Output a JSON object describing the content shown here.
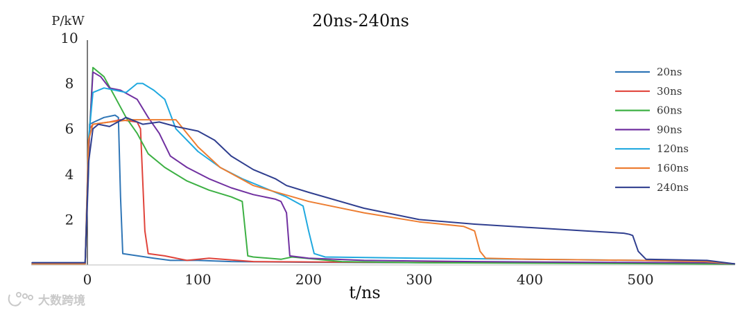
{
  "chart_data": {
    "type": "line",
    "title": "20ns-240ns",
    "xlabel": "t/ns",
    "ylabel": "P/kW",
    "xlim": [
      -50,
      585
    ],
    "ylim": [
      0,
      10
    ],
    "xticks": [
      0,
      100,
      200,
      300,
      400,
      500
    ],
    "yticks": [
      2,
      4,
      6,
      8,
      10
    ],
    "grid": false,
    "legend_position": "right",
    "series": [
      {
        "name": "20ns",
        "color": "#2e75b6",
        "x": [
          -50,
          -2,
          1,
          2,
          6,
          15,
          25,
          28,
          30,
          32,
          60,
          75,
          100,
          130,
          200,
          300,
          400,
          500,
          560,
          585
        ],
        "y": [
          0.1,
          0.1,
          4.0,
          6.2,
          6.3,
          6.5,
          6.6,
          6.5,
          3.0,
          0.5,
          0.3,
          0.2,
          0.2,
          0.15,
          0.12,
          0.1,
          0.1,
          0.08,
          0.08,
          0.05
        ]
      },
      {
        "name": "30ns",
        "color": "#e0433a",
        "x": [
          -50,
          -2,
          2,
          5,
          20,
          30,
          45,
          48,
          52,
          55,
          70,
          90,
          110,
          150,
          250,
          350,
          450,
          560,
          585
        ],
        "y": [
          0.05,
          0.05,
          6.0,
          6.2,
          6.3,
          6.4,
          6.3,
          6.0,
          1.5,
          0.5,
          0.4,
          0.2,
          0.3,
          0.15,
          0.12,
          0.1,
          0.08,
          0.06,
          0.05
        ]
      },
      {
        "name": "60ns",
        "color": "#3cb043",
        "x": [
          -50,
          -2,
          1,
          5,
          15,
          25,
          35,
          45,
          55,
          70,
          90,
          110,
          130,
          140,
          145,
          150,
          175,
          185,
          230,
          300,
          400,
          500,
          585
        ],
        "y": [
          0.05,
          0.05,
          5.0,
          8.7,
          8.3,
          7.4,
          6.5,
          5.8,
          4.9,
          4.3,
          3.7,
          3.3,
          3.0,
          2.8,
          0.4,
          0.35,
          0.25,
          0.35,
          0.15,
          0.1,
          0.08,
          0.06,
          0.04
        ]
      },
      {
        "name": "90ns",
        "color": "#7030a0",
        "x": [
          -50,
          -2,
          1,
          5,
          12,
          20,
          30,
          45,
          55,
          65,
          75,
          90,
          110,
          130,
          150,
          170,
          175,
          180,
          183,
          200,
          250,
          350,
          450,
          560,
          585
        ],
        "y": [
          0.05,
          0.05,
          5.0,
          8.5,
          8.3,
          7.8,
          7.7,
          7.3,
          6.5,
          5.8,
          4.8,
          4.3,
          3.8,
          3.4,
          3.1,
          2.9,
          2.8,
          2.3,
          0.4,
          0.3,
          0.2,
          0.15,
          0.12,
          0.1,
          0.05
        ]
      },
      {
        "name": "120ns",
        "color": "#1fa8df",
        "x": [
          -50,
          -2,
          1,
          5,
          15,
          25,
          35,
          45,
          50,
          60,
          70,
          80,
          100,
          120,
          140,
          160,
          180,
          195,
          200,
          205,
          215,
          300,
          400,
          500,
          560,
          585
        ],
        "y": [
          0.05,
          0.05,
          5.5,
          7.6,
          7.8,
          7.7,
          7.6,
          8.0,
          8.0,
          7.7,
          7.3,
          6.0,
          5.0,
          4.3,
          3.8,
          3.4,
          3.0,
          2.6,
          1.5,
          0.5,
          0.35,
          0.3,
          0.25,
          0.2,
          0.15,
          0.05
        ]
      },
      {
        "name": "160ns",
        "color": "#ed7d31",
        "x": [
          -50,
          -2,
          1,
          5,
          20,
          40,
          55,
          70,
          80,
          100,
          120,
          150,
          200,
          250,
          300,
          340,
          350,
          355,
          360,
          400,
          500,
          560,
          585
        ],
        "y": [
          0.05,
          0.05,
          5.5,
          6.2,
          6.3,
          6.4,
          6.4,
          6.4,
          6.4,
          5.2,
          4.3,
          3.5,
          2.8,
          2.3,
          1.9,
          1.7,
          1.5,
          0.6,
          0.3,
          0.25,
          0.2,
          0.15,
          0.05
        ]
      },
      {
        "name": "240ns",
        "color": "#2f3e8f",
        "x": [
          -50,
          -2,
          1,
          5,
          10,
          20,
          35,
          50,
          65,
          80,
          100,
          115,
          130,
          150,
          170,
          180,
          200,
          250,
          300,
          350,
          400,
          450,
          485,
          490,
          493,
          498,
          505,
          560,
          585
        ],
        "y": [
          0.1,
          0.1,
          4.5,
          6.0,
          6.2,
          6.1,
          6.5,
          6.2,
          6.3,
          6.1,
          5.9,
          5.5,
          4.8,
          4.2,
          3.8,
          3.5,
          3.2,
          2.5,
          2.0,
          1.8,
          1.65,
          1.5,
          1.4,
          1.35,
          1.3,
          0.6,
          0.25,
          0.2,
          0.05
        ]
      }
    ]
  },
  "watermark": {
    "text": "大数跨境"
  }
}
